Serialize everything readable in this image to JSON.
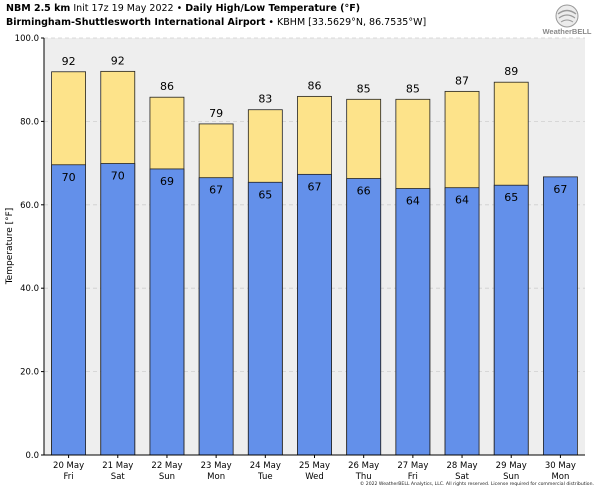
{
  "header": {
    "model": "NBM 2.5 km",
    "init": "Init 17z 19 May 2022",
    "bullet": "•",
    "title": "Daily High/Low Temperature (°F)",
    "station": "Birmingham-Shuttlesworth International Airport",
    "station_id": "KBHM",
    "coords": "[33.5629°N, 86.7535°W]"
  },
  "logo": {
    "icon": "globe-swirl-icon",
    "text": "WeatherBELL"
  },
  "copyright": "© 2022 WeatherBELL Analytics, LLC. All rights reserved. License required for commercial distribution.",
  "colors": {
    "high": "#fde38a",
    "low": "#6390ea",
    "edge": "#222222",
    "grid": "#cfcfcf",
    "plot_bg": "#eeeeee"
  },
  "chart_data": {
    "type": "bar",
    "ylabel": "Temperature [°F]",
    "ylim": [
      0,
      100
    ],
    "yticks": [
      "0.0",
      "20.0",
      "40.0",
      "60.0",
      "80.0",
      "100.0"
    ],
    "grid": "horizontal-dashed",
    "categories": [
      {
        "date": "20 May",
        "day": "Fri"
      },
      {
        "date": "21 May",
        "day": "Sat"
      },
      {
        "date": "22 May",
        "day": "Sun"
      },
      {
        "date": "23 May",
        "day": "Mon"
      },
      {
        "date": "24 May",
        "day": "Tue"
      },
      {
        "date": "25 May",
        "day": "Wed"
      },
      {
        "date": "26 May",
        "day": "Thu"
      },
      {
        "date": "27 May",
        "day": "Fri"
      },
      {
        "date": "28 May",
        "day": "Sat"
      },
      {
        "date": "29 May",
        "day": "Sun"
      },
      {
        "date": "30 May",
        "day": "Mon"
      }
    ],
    "series": [
      {
        "key": "high",
        "values": [
          92,
          92,
          86,
          79,
          83,
          86,
          85,
          85,
          87,
          89,
          null
        ],
        "bar_values": [
          91.9,
          92.0,
          85.8,
          79.4,
          82.8,
          86.0,
          85.3,
          85.3,
          87.2,
          89.4,
          null
        ]
      },
      {
        "key": "low",
        "values": [
          70,
          70,
          69,
          67,
          65,
          67,
          66,
          64,
          64,
          65,
          67
        ],
        "bar_values": [
          69.6,
          69.9,
          68.6,
          66.5,
          65.4,
          67.3,
          66.3,
          63.9,
          64.1,
          64.7,
          66.7
        ]
      }
    ]
  }
}
